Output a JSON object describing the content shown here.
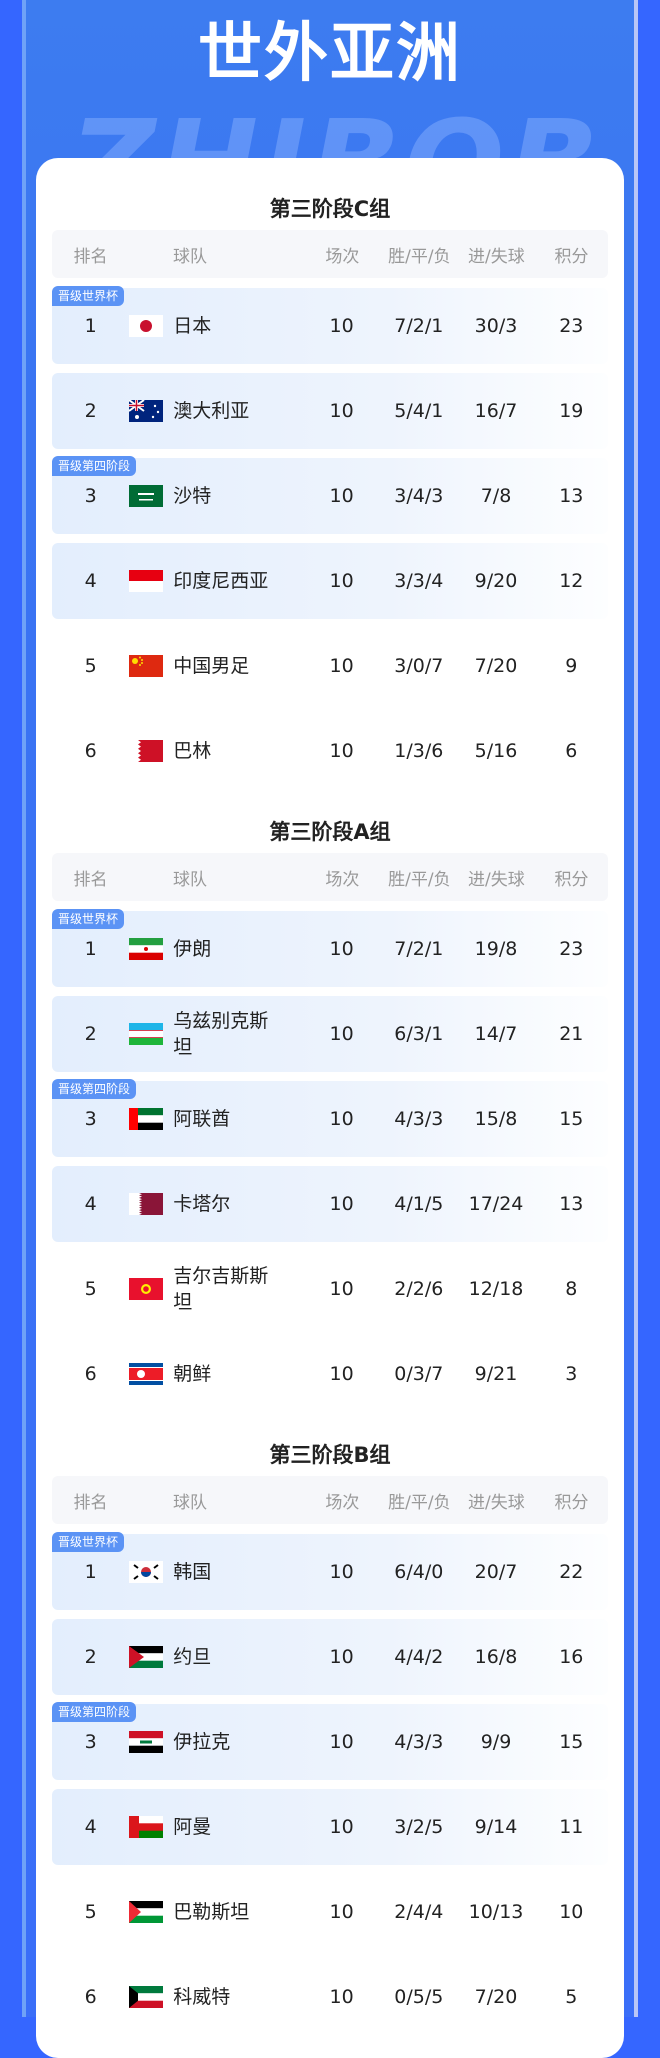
{
  "header": {
    "title": "世外亚洲",
    "watermark": "ZHIBOBA"
  },
  "columns": {
    "rank": "排名",
    "team": "球队",
    "played": "场次",
    "wdl": "胜/平/负",
    "goals": "进/失球",
    "points": "积分"
  },
  "badges": {
    "qualified": "晋级世界杯",
    "fourth": "晋级第四阶段"
  },
  "groups": [
    {
      "title": "第三阶段C组",
      "rows": [
        {
          "rank": "1",
          "flag": "japan",
          "team": "日本",
          "played": "10",
          "wdl": "7/2/1",
          "goals": "30/3",
          "points": "23",
          "badge": "qualified",
          "highlight": true
        },
        {
          "rank": "2",
          "flag": "australia",
          "team": "澳大利亚",
          "played": "10",
          "wdl": "5/4/1",
          "goals": "16/7",
          "points": "19",
          "highlight": true
        },
        {
          "rank": "3",
          "flag": "saudi-arabia",
          "team": "沙特",
          "played": "10",
          "wdl": "3/4/3",
          "goals": "7/8",
          "points": "13",
          "badge": "fourth",
          "highlight": true
        },
        {
          "rank": "4",
          "flag": "indonesia",
          "team": "印度尼西亚",
          "played": "10",
          "wdl": "3/3/4",
          "goals": "9/20",
          "points": "12",
          "highlight": true
        },
        {
          "rank": "5",
          "flag": "china",
          "team": "中国男足",
          "played": "10",
          "wdl": "3/0/7",
          "goals": "7/20",
          "points": "9"
        },
        {
          "rank": "6",
          "flag": "bahrain",
          "team": "巴林",
          "played": "10",
          "wdl": "1/3/6",
          "goals": "5/16",
          "points": "6"
        }
      ]
    },
    {
      "title": "第三阶段A组",
      "rows": [
        {
          "rank": "1",
          "flag": "iran",
          "team": "伊朗",
          "played": "10",
          "wdl": "7/2/1",
          "goals": "19/8",
          "points": "23",
          "badge": "qualified",
          "highlight": true
        },
        {
          "rank": "2",
          "flag": "uzbekistan",
          "team": "乌兹别克斯坦",
          "played": "10",
          "wdl": "6/3/1",
          "goals": "14/7",
          "points": "21",
          "highlight": true
        },
        {
          "rank": "3",
          "flag": "uae",
          "team": "阿联酋",
          "played": "10",
          "wdl": "4/3/3",
          "goals": "15/8",
          "points": "15",
          "badge": "fourth",
          "highlight": true
        },
        {
          "rank": "4",
          "flag": "qatar",
          "team": "卡塔尔",
          "played": "10",
          "wdl": "4/1/5",
          "goals": "17/24",
          "points": "13",
          "highlight": true
        },
        {
          "rank": "5",
          "flag": "kyrgyzstan",
          "team": "吉尔吉斯斯坦",
          "played": "10",
          "wdl": "2/2/6",
          "goals": "12/18",
          "points": "8"
        },
        {
          "rank": "6",
          "flag": "north-korea",
          "team": "朝鲜",
          "played": "10",
          "wdl": "0/3/7",
          "goals": "9/21",
          "points": "3"
        }
      ]
    },
    {
      "title": "第三阶段B组",
      "rows": [
        {
          "rank": "1",
          "flag": "south-korea",
          "team": "韩国",
          "played": "10",
          "wdl": "6/4/0",
          "goals": "20/7",
          "points": "22",
          "badge": "qualified",
          "highlight": true
        },
        {
          "rank": "2",
          "flag": "jordan",
          "team": "约旦",
          "played": "10",
          "wdl": "4/4/2",
          "goals": "16/8",
          "points": "16",
          "highlight": true
        },
        {
          "rank": "3",
          "flag": "iraq",
          "team": "伊拉克",
          "played": "10",
          "wdl": "4/3/3",
          "goals": "9/9",
          "points": "15",
          "badge": "fourth",
          "highlight": true
        },
        {
          "rank": "4",
          "flag": "oman",
          "team": "阿曼",
          "played": "10",
          "wdl": "3/2/5",
          "goals": "9/14",
          "points": "11",
          "highlight": true
        },
        {
          "rank": "5",
          "flag": "palestine",
          "team": "巴勒斯坦",
          "played": "10",
          "wdl": "2/4/4",
          "goals": "10/13",
          "points": "10"
        },
        {
          "rank": "6",
          "flag": "kuwait",
          "team": "科威特",
          "played": "10",
          "wdl": "0/5/5",
          "goals": "7/20",
          "points": "5"
        }
      ]
    }
  ]
}
